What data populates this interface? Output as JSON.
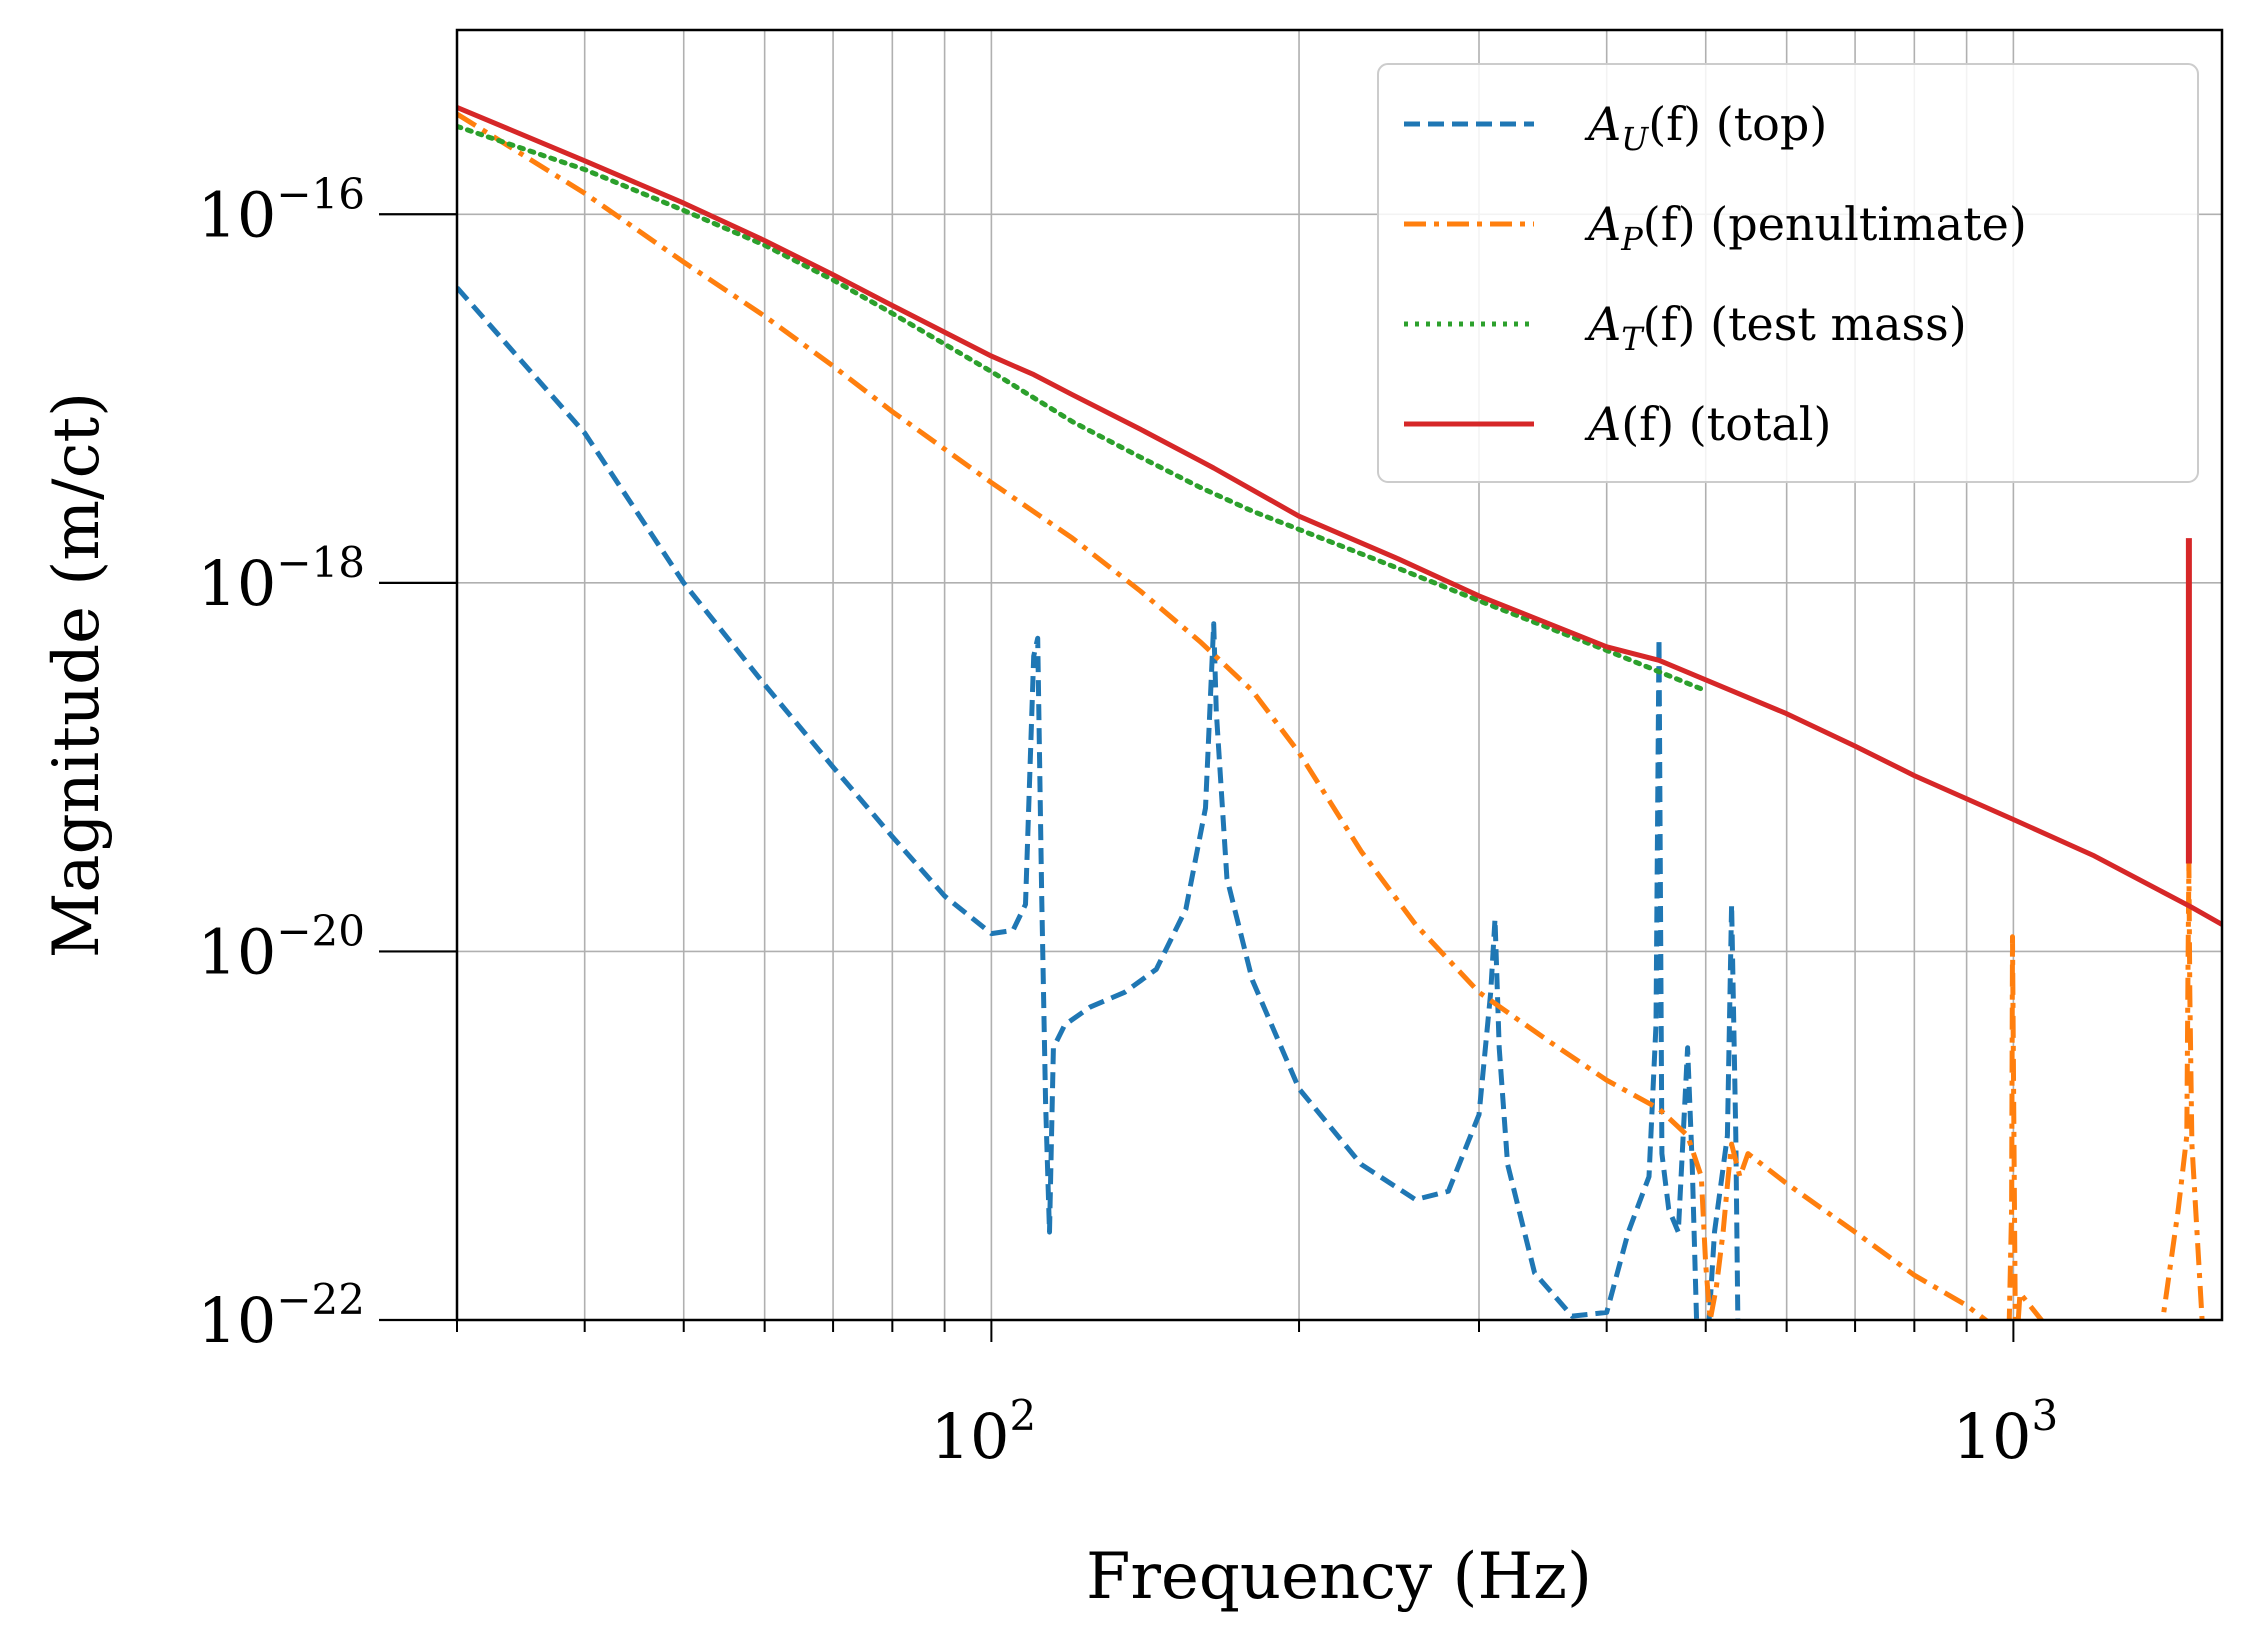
{
  "chart_data": {
    "type": "line",
    "xlabel": "Frequency (Hz)",
    "ylabel": "Magnitude (m/ct)",
    "xscale": "log",
    "yscale": "log",
    "xlim": [
      30,
      1600
    ],
    "ylim": [
      1e-22,
      1e-15
    ],
    "grid": true,
    "legend_position": "top-right",
    "x_ticks": [
      {
        "value": 100,
        "base": "10",
        "exp": "2"
      },
      {
        "value": 1000,
        "base": "10",
        "exp": "3"
      }
    ],
    "y_ticks": [
      {
        "value": 1e-16,
        "base": "10",
        "exp": "−16"
      },
      {
        "value": 1e-18,
        "base": "10",
        "exp": "−18"
      },
      {
        "value": 1e-20,
        "base": "10",
        "exp": "−20"
      },
      {
        "value": 1e-22,
        "base": "10",
        "exp": "−22"
      }
    ],
    "series": [
      {
        "name": "A_U(f) (top)",
        "legend": {
          "sym": "A",
          "sub": "U",
          "rest": "(f) (top)"
        },
        "color": "#1f77b4",
        "style": "dashed",
        "points": [
          [
            30,
            4e-17
          ],
          [
            40,
            6.5e-18
          ],
          [
            50,
            1e-18
          ],
          [
            60,
            2.8e-19
          ],
          [
            70,
            1e-19
          ],
          [
            80,
            4.2e-20
          ],
          [
            90,
            2e-20
          ],
          [
            100,
            1.25e-20
          ],
          [
            105,
            1.3e-20
          ],
          [
            108,
            1.8e-20
          ],
          [
            110,
            4e-19
          ],
          [
            111,
            5e-19
          ],
          [
            112,
            2e-20
          ],
          [
            113,
            1.5e-21
          ],
          [
            114,
            3e-22
          ],
          [
            115,
            3e-21
          ],
          [
            118,
            4e-21
          ],
          [
            125,
            5e-21
          ],
          [
            135,
            6e-21
          ],
          [
            145,
            8e-21
          ],
          [
            155,
            1.7e-20
          ],
          [
            162,
            6e-20
          ],
          [
            165,
            6e-19
          ],
          [
            166,
            2e-19
          ],
          [
            170,
            2.5e-20
          ],
          [
            180,
            7e-21
          ],
          [
            200,
            1.8e-21
          ],
          [
            230,
            7e-22
          ],
          [
            260,
            4.5e-22
          ],
          [
            280,
            5e-22
          ],
          [
            300,
            1.3e-21
          ],
          [
            308,
            6e-21
          ],
          [
            311,
            1.5e-20
          ],
          [
            314,
            3e-21
          ],
          [
            320,
            7e-22
          ],
          [
            340,
            1.8e-22
          ],
          [
            370,
            1.05e-22
          ],
          [
            400,
            1.1e-22
          ],
          [
            420,
            3e-22
          ],
          [
            440,
            6e-22
          ],
          [
            447,
            4e-21
          ],
          [
            450,
            5e-19
          ],
          [
            453,
            8e-22
          ],
          [
            460,
            4e-22
          ],
          [
            470,
            3e-22
          ],
          [
            480,
            3e-21
          ],
          [
            485,
            7e-22
          ],
          [
            490,
            9e-23
          ],
          [
            500,
            5e-23
          ],
          [
            510,
            3e-22
          ],
          [
            525,
            1e-21
          ],
          [
            530,
            1.8e-20
          ],
          [
            535,
            1e-21
          ],
          [
            540,
            1e-23
          ]
        ]
      },
      {
        "name": "A_P(f) (penultimate)",
        "legend": {
          "sym": "A",
          "sub": "P",
          "rest": "(f) (penultimate)"
        },
        "color": "#ff7f0e",
        "style": "dashdot",
        "points": [
          [
            30,
            3.5e-16
          ],
          [
            40,
            1.3e-16
          ],
          [
            50,
            5.5e-17
          ],
          [
            60,
            2.8e-17
          ],
          [
            70,
            1.5e-17
          ],
          [
            80,
            8.5e-18
          ],
          [
            100,
            3.5e-18
          ],
          [
            120,
            1.75e-18
          ],
          [
            140,
            9e-19
          ],
          [
            160,
            4.8e-19
          ],
          [
            180,
            2.6e-19
          ],
          [
            200,
            1.2e-19
          ],
          [
            230,
            3.5e-20
          ],
          [
            260,
            1.4e-20
          ],
          [
            300,
            6e-21
          ],
          [
            350,
            3.3e-21
          ],
          [
            400,
            2e-21
          ],
          [
            450,
            1.4e-21
          ],
          [
            480,
            1e-21
          ],
          [
            495,
            6e-22
          ],
          [
            500,
            2e-22
          ],
          [
            505,
            1e-22
          ],
          [
            512,
            1.5e-22
          ],
          [
            520,
            3e-22
          ],
          [
            526,
            6e-22
          ],
          [
            530,
            9e-22
          ],
          [
            540,
            6e-22
          ],
          [
            550,
            8e-22
          ],
          [
            600,
            5.5e-22
          ],
          [
            700,
            3e-22
          ],
          [
            800,
            1.75e-22
          ],
          [
            900,
            1.2e-22
          ],
          [
            990,
            8e-23
          ],
          [
            996,
            4e-22
          ],
          [
            998,
            1.2e-20
          ],
          [
            1000,
            2.5e-21
          ],
          [
            1005,
            6e-23
          ],
          [
            1015,
            1.4e-22
          ],
          [
            1100,
            8e-23
          ],
          [
            1200,
            5e-23
          ],
          [
            1300,
            5e-23
          ],
          [
            1400,
            1e-22
          ],
          [
            1450,
            4e-22
          ],
          [
            1478,
            1e-21
          ],
          [
            1482,
            8e-21
          ],
          [
            1485,
            3e-20
          ],
          [
            1488,
            6e-21
          ],
          [
            1495,
            9e-22
          ],
          [
            1530,
            1e-22
          ],
          [
            1550,
            5e-23
          ]
        ]
      },
      {
        "name": "A_T(f) (test mass)",
        "legend": {
          "sym": "A",
          "sub": "T",
          "rest": "(f) (test mass)"
        },
        "color": "#2ca02c",
        "style": "dotted",
        "points": [
          [
            30,
            3e-16
          ],
          [
            40,
            1.75e-16
          ],
          [
            50,
            1.05e-16
          ],
          [
            60,
            6.8e-17
          ],
          [
            70,
            4.4e-17
          ],
          [
            80,
            2.9e-17
          ],
          [
            100,
            1.4e-17
          ],
          [
            120,
            7.5e-18
          ],
          [
            140,
            4.8e-18
          ],
          [
            160,
            3.3e-18
          ],
          [
            180,
            2.45e-18
          ],
          [
            200,
            1.95e-18
          ],
          [
            250,
            1.2e-18
          ],
          [
            300,
            8e-19
          ],
          [
            400,
            4.3e-19
          ],
          [
            500,
            2.6e-19
          ]
        ]
      },
      {
        "name": "A(f) (total)",
        "legend": {
          "sym": "A",
          "sub": "",
          "rest": "(f) (total)"
        },
        "color": "#d62728",
        "style": "solid",
        "points": [
          [
            30,
            3.8e-16
          ],
          [
            40,
            1.95e-16
          ],
          [
            50,
            1.15e-16
          ],
          [
            60,
            7.2e-17
          ],
          [
            70,
            4.7e-17
          ],
          [
            80,
            3.2e-17
          ],
          [
            100,
            1.7e-17
          ],
          [
            110,
            1.35e-17
          ],
          [
            120,
            1.05e-17
          ],
          [
            140,
            6.8e-18
          ],
          [
            160,
            4.6e-18
          ],
          [
            165,
            4.2e-18
          ],
          [
            180,
            3.2e-18
          ],
          [
            200,
            2.3e-18
          ],
          [
            250,
            1.35e-18
          ],
          [
            300,
            8.5e-19
          ],
          [
            400,
            4.5e-19
          ],
          [
            450,
            3.8e-19
          ],
          [
            530,
            2.6e-19
          ],
          [
            600,
            1.95e-19
          ],
          [
            700,
            1.3e-19
          ],
          [
            800,
            9e-20
          ],
          [
            1000,
            5.2e-20
          ],
          [
            1200,
            3.3e-20
          ],
          [
            1400,
            2.1e-20
          ],
          [
            1490,
            1.75e-20
          ],
          [
            1600,
            1.4e-20
          ]
        ],
        "spike": {
          "x": 1485,
          "y_top": 1.75e-18,
          "y_bottom": 3e-20
        }
      }
    ]
  }
}
